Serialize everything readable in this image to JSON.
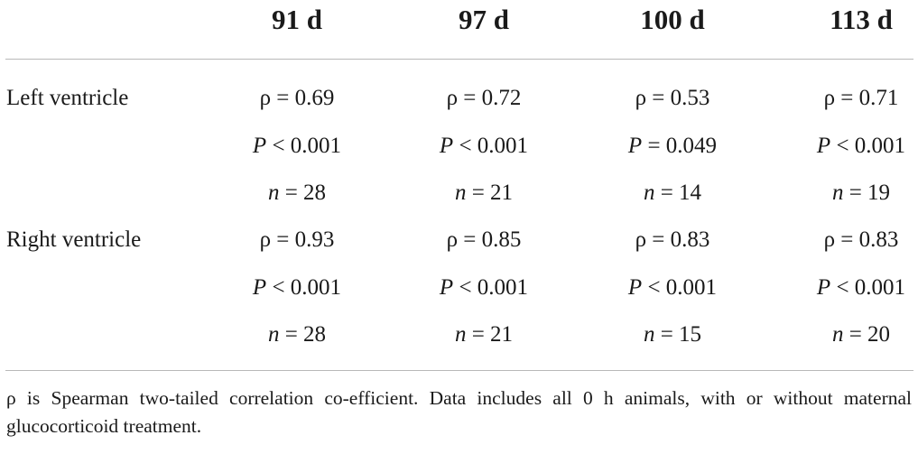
{
  "table": {
    "columns": [
      "91 d",
      "97 d",
      "100 d",
      "113 d"
    ],
    "rows": [
      {
        "label": "Left ventricle",
        "rho": [
          "ρ = 0.69",
          "ρ = 0.72",
          "ρ = 0.53",
          "ρ = 0.71"
        ],
        "p": [
          {
            "sym": "P",
            "rest": " < 0.001"
          },
          {
            "sym": "P",
            "rest": " < 0.001"
          },
          {
            "sym": "P",
            "rest": " = 0.049"
          },
          {
            "sym": "P",
            "rest": " < 0.001"
          }
        ],
        "n": [
          {
            "sym": "n",
            "rest": " = 28"
          },
          {
            "sym": "n",
            "rest": " = 21"
          },
          {
            "sym": "n",
            "rest": " = 14"
          },
          {
            "sym": "n",
            "rest": " = 19"
          }
        ]
      },
      {
        "label": "Right ventricle",
        "rho": [
          "ρ = 0.93",
          "ρ = 0.85",
          "ρ = 0.83",
          "ρ = 0.83"
        ],
        "p": [
          {
            "sym": "P",
            "rest": " < 0.001"
          },
          {
            "sym": "P",
            "rest": " < 0.001"
          },
          {
            "sym": "P",
            "rest": " < 0.001"
          },
          {
            "sym": "P",
            "rest": " < 0.001"
          }
        ],
        "n": [
          {
            "sym": "n",
            "rest": " = 28"
          },
          {
            "sym": "n",
            "rest": " = 21"
          },
          {
            "sym": "n",
            "rest": " = 15"
          },
          {
            "sym": "n",
            "rest": " = 20"
          }
        ]
      }
    ],
    "footnote": "ρ is Spearman two-tailed correlation co-efficient. Data includes all 0 h animals, with or without maternal glucocorticoid treatment."
  }
}
